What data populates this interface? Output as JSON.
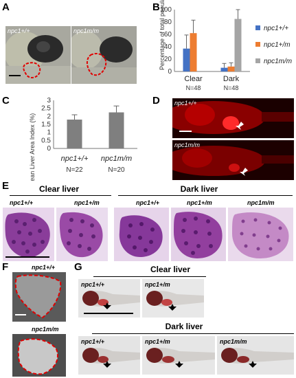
{
  "panels": {
    "A": {
      "label": "A",
      "left_genotype": "npc1+/+",
      "right_genotype": "npc1m/m"
    },
    "B": {
      "label": "B"
    },
    "C": {
      "label": "C"
    },
    "D": {
      "label": "D",
      "top_genotype": "npc1+/+",
      "bottom_genotype": "npc1m/m"
    },
    "E": {
      "label": "E",
      "clear_header": "Clear liver",
      "dark_header": "Dark liver",
      "genotypes": [
        "npc1+/+",
        "npc1+/m",
        "npc1+/+",
        "npc1+/m",
        "npc1m/m"
      ]
    },
    "F": {
      "label": "F",
      "top_genotype": "npc1+/+",
      "bottom_genotype": "npc1m/m"
    },
    "G": {
      "label": "G",
      "clear_header": "Clear liver",
      "dark_header": "Dark liver",
      "clear_genotypes": [
        "npc1+/+",
        "npc1+/m"
      ],
      "dark_genotypes": [
        "npc1+/+",
        "npc1+/m",
        "npc1m/m"
      ]
    }
  },
  "colors": {
    "wt": "#4472c4",
    "het": "#ed7d31",
    "mut": "#a5a5a5",
    "bar_c": "#7f7f7f",
    "fluor": "#d80000"
  },
  "chart_data": [
    {
      "type": "bar",
      "ylabel": "Percentage of total population (%)",
      "ylim": [
        0,
        100
      ],
      "yticks": [
        "0",
        "20",
        "40",
        "60",
        "80",
        "100"
      ],
      "categories": [
        "Clear",
        "Dark"
      ],
      "category_notes": [
        "N=48",
        "N=48"
      ],
      "series": [
        {
          "name": "npc1+/+",
          "values": [
            37,
            6
          ],
          "errors": [
            22,
            7
          ]
        },
        {
          "name": "npc1+/m",
          "values": [
            62,
            8
          ],
          "errors": [
            21,
            6
          ]
        },
        {
          "name": "npc1m/m",
          "values": [
            0,
            85
          ],
          "errors": [
            0,
            15
          ]
        }
      ],
      "legend": "right"
    },
    {
      "type": "bar",
      "ylabel": "Mean Liver Area Index (%)",
      "ylim": [
        0,
        3
      ],
      "yticks": [
        "0",
        "0.5",
        "1",
        "1.5",
        "2",
        "2.5",
        "3"
      ],
      "categories": [
        "npc1+/+",
        "npc1m/m"
      ],
      "category_notes": [
        "N=22",
        "N=20"
      ],
      "values": [
        1.8,
        2.25
      ],
      "errors": [
        0.3,
        0.4
      ]
    }
  ]
}
